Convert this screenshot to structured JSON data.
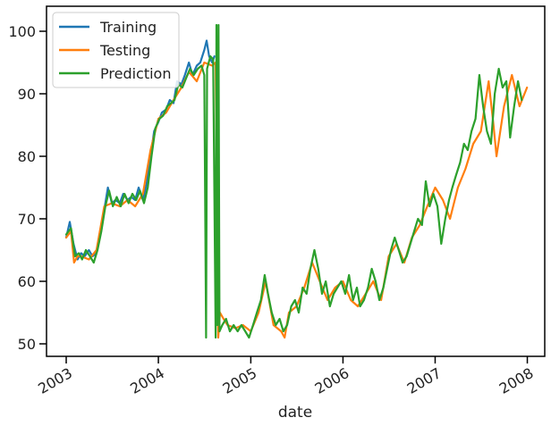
{
  "chart_data": {
    "type": "line",
    "xlabel": "date",
    "ylabel": "",
    "x_ticks": [
      "2003",
      "2004",
      "2005",
      "2006",
      "2007",
      "2008"
    ],
    "y_ticks": [
      50,
      60,
      70,
      80,
      90,
      100
    ],
    "xlim": [
      "2002-10-15",
      "2008-03-10"
    ],
    "ylim": [
      48,
      104
    ],
    "legend_position": "top-left",
    "series": [
      {
        "name": "Training",
        "color": "#1f77b4",
        "points": [
          [
            "2003-01-01",
            67
          ],
          [
            "2003-01-15",
            69.5
          ],
          [
            "2003-01-30",
            66
          ],
          [
            "2003-02-15",
            63.5
          ],
          [
            "2003-03-01",
            64.5
          ],
          [
            "2003-03-15",
            64
          ],
          [
            "2003-04-01",
            65
          ],
          [
            "2003-04-15",
            64
          ],
          [
            "2003-05-01",
            64.5
          ],
          [
            "2003-05-15",
            67.5
          ],
          [
            "2003-06-01",
            71.5
          ],
          [
            "2003-06-15",
            75
          ],
          [
            "2003-07-01",
            72.5
          ],
          [
            "2003-07-15",
            73
          ],
          [
            "2003-08-01",
            72.5
          ],
          [
            "2003-08-15",
            74
          ],
          [
            "2003-09-01",
            73
          ],
          [
            "2003-09-15",
            73.5
          ],
          [
            "2003-10-01",
            73
          ],
          [
            "2003-10-15",
            75
          ],
          [
            "2003-11-01",
            73
          ],
          [
            "2003-11-15",
            75.5
          ],
          [
            "2003-12-01",
            80
          ],
          [
            "2003-12-15",
            84
          ],
          [
            "2004-01-01",
            85.5
          ],
          [
            "2004-01-15",
            87
          ],
          [
            "2004-02-01",
            87.5
          ],
          [
            "2004-02-15",
            89
          ],
          [
            "2004-03-01",
            88.5
          ],
          [
            "2004-03-15",
            92
          ],
          [
            "2004-04-01",
            91.5
          ],
          [
            "2004-04-15",
            93
          ],
          [
            "2004-05-01",
            95
          ],
          [
            "2004-05-15",
            93
          ],
          [
            "2004-06-01",
            94.5
          ],
          [
            "2004-06-15",
            95
          ],
          [
            "2004-07-01",
            97
          ],
          [
            "2004-07-10",
            98.5
          ],
          [
            "2004-07-20",
            96
          ],
          [
            "2004-08-01",
            95
          ],
          [
            "2004-08-10",
            96
          ]
        ]
      },
      {
        "name": "Testing",
        "color": "#ff7f0e",
        "points": [
          [
            "2003-01-01",
            67
          ],
          [
            "2003-01-20",
            68
          ],
          [
            "2003-02-01",
            63
          ],
          [
            "2003-02-15",
            64
          ],
          [
            "2003-03-01",
            64
          ],
          [
            "2003-04-01",
            63.5
          ],
          [
            "2003-05-01",
            65
          ],
          [
            "2003-06-01",
            72
          ],
          [
            "2003-07-01",
            72.5
          ],
          [
            "2003-08-01",
            72
          ],
          [
            "2003-09-01",
            73
          ],
          [
            "2003-10-01",
            72
          ],
          [
            "2003-11-01",
            74
          ],
          [
            "2003-12-01",
            81
          ],
          [
            "2004-01-01",
            86
          ],
          [
            "2004-02-01",
            87
          ],
          [
            "2004-03-01",
            89
          ],
          [
            "2004-04-01",
            91
          ],
          [
            "2004-05-01",
            93.5
          ],
          [
            "2004-06-01",
            92
          ],
          [
            "2004-07-01",
            95
          ],
          [
            "2004-08-01",
            94.5
          ],
          [
            "2004-08-15",
            95
          ],
          [
            "2004-08-25",
            51
          ],
          [
            "2004-09-01",
            55
          ],
          [
            "2004-09-15",
            54
          ],
          [
            "2004-10-01",
            53
          ],
          [
            "2004-11-01",
            52.5
          ],
          [
            "2004-12-01",
            53
          ],
          [
            "2005-01-01",
            52
          ],
          [
            "2005-02-01",
            55
          ],
          [
            "2005-03-01",
            60
          ],
          [
            "2005-04-01",
            53
          ],
          [
            "2005-05-01",
            52
          ],
          [
            "2005-05-15",
            51
          ],
          [
            "2005-06-01",
            55
          ],
          [
            "2005-07-01",
            56
          ],
          [
            "2005-08-01",
            59
          ],
          [
            "2005-09-01",
            63
          ],
          [
            "2005-10-01",
            60
          ],
          [
            "2005-11-01",
            57
          ],
          [
            "2005-12-01",
            59
          ],
          [
            "2006-01-01",
            60
          ],
          [
            "2006-02-01",
            57
          ],
          [
            "2006-03-01",
            56
          ],
          [
            "2006-04-01",
            58
          ],
          [
            "2006-05-01",
            60
          ],
          [
            "2006-06-01",
            57
          ],
          [
            "2006-07-01",
            64
          ],
          [
            "2006-08-01",
            66
          ],
          [
            "2006-09-01",
            63
          ],
          [
            "2006-10-01",
            67
          ],
          [
            "2006-11-01",
            69
          ],
          [
            "2006-12-01",
            72
          ],
          [
            "2007-01-01",
            75
          ],
          [
            "2007-02-01",
            73
          ],
          [
            "2007-03-01",
            70
          ],
          [
            "2007-04-01",
            75
          ],
          [
            "2007-05-01",
            78
          ],
          [
            "2007-06-01",
            82
          ],
          [
            "2007-07-01",
            84
          ],
          [
            "2007-08-01",
            92
          ],
          [
            "2007-08-20",
            85
          ],
          [
            "2007-09-01",
            80
          ],
          [
            "2007-10-01",
            88
          ],
          [
            "2007-11-01",
            93
          ],
          [
            "2007-12-01",
            88
          ],
          [
            "2007-12-31",
            91
          ]
        ]
      },
      {
        "name": "Prediction",
        "color": "#2ca02c",
        "points": [
          [
            "2003-01-01",
            67.5
          ],
          [
            "2003-01-20",
            68.5
          ],
          [
            "2003-02-05",
            64
          ],
          [
            "2003-02-20",
            64.5
          ],
          [
            "2003-03-05",
            63.5
          ],
          [
            "2003-03-20",
            65
          ],
          [
            "2003-04-05",
            64
          ],
          [
            "2003-04-20",
            63
          ],
          [
            "2003-05-05",
            65
          ],
          [
            "2003-05-20",
            68
          ],
          [
            "2003-06-05",
            72
          ],
          [
            "2003-06-20",
            74.5
          ],
          [
            "2003-07-05",
            72
          ],
          [
            "2003-07-20",
            73.5
          ],
          [
            "2003-08-05",
            72
          ],
          [
            "2003-08-20",
            74
          ],
          [
            "2003-09-05",
            72.5
          ],
          [
            "2003-09-20",
            74
          ],
          [
            "2003-10-05",
            73
          ],
          [
            "2003-10-20",
            74.5
          ],
          [
            "2003-11-05",
            72.5
          ],
          [
            "2003-11-20",
            75
          ],
          [
            "2003-12-05",
            80
          ],
          [
            "2003-12-20",
            84.5
          ],
          [
            "2004-01-05",
            86
          ],
          [
            "2004-01-20",
            86.5
          ],
          [
            "2004-02-05",
            88
          ],
          [
            "2004-02-20",
            88.5
          ],
          [
            "2004-03-05",
            89
          ],
          [
            "2004-03-20",
            91.5
          ],
          [
            "2004-04-05",
            91
          ],
          [
            "2004-04-20",
            92.5
          ],
          [
            "2004-05-05",
            94
          ],
          [
            "2004-05-20",
            93
          ],
          [
            "2004-06-05",
            94
          ],
          [
            "2004-06-20",
            94.5
          ],
          [
            "2004-07-01",
            93
          ],
          [
            "2004-07-08",
            51
          ],
          [
            "2004-07-12",
            94
          ],
          [
            "2004-07-25",
            96
          ],
          [
            "2004-08-05",
            95.5
          ],
          [
            "2004-08-15",
            51
          ],
          [
            "2004-08-18",
            101
          ],
          [
            "2004-08-22",
            53
          ],
          [
            "2004-08-26",
            101
          ],
          [
            "2004-08-30",
            52
          ],
          [
            "2004-09-10",
            53
          ],
          [
            "2004-09-25",
            54
          ],
          [
            "2004-10-10",
            52
          ],
          [
            "2004-10-25",
            53
          ],
          [
            "2004-11-10",
            52
          ],
          [
            "2004-11-25",
            53
          ],
          [
            "2004-12-10",
            52
          ],
          [
            "2004-12-25",
            51
          ],
          [
            "2005-01-10",
            53
          ],
          [
            "2005-01-25",
            55
          ],
          [
            "2005-02-10",
            57
          ],
          [
            "2005-02-25",
            61
          ],
          [
            "2005-03-10",
            58
          ],
          [
            "2005-03-25",
            55
          ],
          [
            "2005-04-10",
            53
          ],
          [
            "2005-04-25",
            54
          ],
          [
            "2005-05-10",
            52
          ],
          [
            "2005-05-25",
            53
          ],
          [
            "2005-06-10",
            56
          ],
          [
            "2005-06-25",
            57
          ],
          [
            "2005-07-10",
            55
          ],
          [
            "2005-07-25",
            59
          ],
          [
            "2005-08-10",
            58
          ],
          [
            "2005-08-25",
            62
          ],
          [
            "2005-09-10",
            65
          ],
          [
            "2005-09-25",
            62
          ],
          [
            "2005-10-10",
            58
          ],
          [
            "2005-10-25",
            60
          ],
          [
            "2005-11-10",
            56
          ],
          [
            "2005-11-25",
            58
          ],
          [
            "2005-12-10",
            59
          ],
          [
            "2005-12-25",
            60
          ],
          [
            "2006-01-10",
            58
          ],
          [
            "2006-01-25",
            61
          ],
          [
            "2006-02-10",
            57
          ],
          [
            "2006-02-25",
            59
          ],
          [
            "2006-03-10",
            56
          ],
          [
            "2006-03-25",
            57
          ],
          [
            "2006-04-10",
            59
          ],
          [
            "2006-04-25",
            62
          ],
          [
            "2006-05-10",
            60
          ],
          [
            "2006-05-25",
            57
          ],
          [
            "2006-06-10",
            59
          ],
          [
            "2006-06-25",
            62
          ],
          [
            "2006-07-10",
            65
          ],
          [
            "2006-07-25",
            67
          ],
          [
            "2006-08-10",
            65
          ],
          [
            "2006-08-25",
            63
          ],
          [
            "2006-09-10",
            64
          ],
          [
            "2006-09-25",
            66
          ],
          [
            "2006-10-10",
            68
          ],
          [
            "2006-10-25",
            70
          ],
          [
            "2006-11-10",
            69
          ],
          [
            "2006-11-25",
            76
          ],
          [
            "2006-12-10",
            72
          ],
          [
            "2006-12-25",
            74
          ],
          [
            "2007-01-10",
            72
          ],
          [
            "2007-01-25",
            66
          ],
          [
            "2007-02-10",
            70
          ],
          [
            "2007-02-25",
            73
          ],
          [
            "2007-03-10",
            75
          ],
          [
            "2007-03-25",
            77
          ],
          [
            "2007-04-10",
            79
          ],
          [
            "2007-04-25",
            82
          ],
          [
            "2007-05-10",
            81
          ],
          [
            "2007-05-25",
            84
          ],
          [
            "2007-06-10",
            86
          ],
          [
            "2007-06-25",
            93
          ],
          [
            "2007-07-10",
            88
          ],
          [
            "2007-07-25",
            84
          ],
          [
            "2007-08-10",
            82
          ],
          [
            "2007-08-25",
            90
          ],
          [
            "2007-09-10",
            94
          ],
          [
            "2007-09-25",
            91
          ],
          [
            "2007-10-10",
            92
          ],
          [
            "2007-10-25",
            83
          ],
          [
            "2007-11-10",
            88
          ],
          [
            "2007-11-25",
            92
          ],
          [
            "2007-12-10",
            89
          ]
        ]
      }
    ]
  }
}
